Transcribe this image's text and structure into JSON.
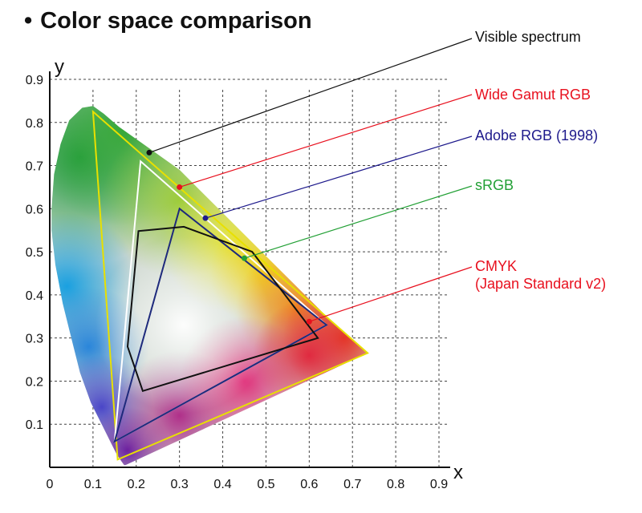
{
  "title": "Color space comparison",
  "chart_data": {
    "type": "line",
    "title": "Color space comparison",
    "xlabel": "x",
    "ylabel": "y",
    "xlim": [
      0,
      0.9
    ],
    "ylim": [
      0,
      0.9
    ],
    "grid": true,
    "x_ticks": [
      "0",
      "0.1",
      "0.2",
      "0.3",
      "0.4",
      "0.5",
      "0.6",
      "0.7",
      "0.8",
      "0.9"
    ],
    "y_ticks": [
      "0.1",
      "0.2",
      "0.3",
      "0.4",
      "0.5",
      "0.6",
      "0.7",
      "0.8",
      "0.9"
    ],
    "spectral_locus": [
      [
        0.175,
        0.005
      ],
      [
        0.172,
        0.005
      ],
      [
        0.165,
        0.015
      ],
      [
        0.155,
        0.03
      ],
      [
        0.14,
        0.06
      ],
      [
        0.12,
        0.1
      ],
      [
        0.095,
        0.15
      ],
      [
        0.07,
        0.22
      ],
      [
        0.05,
        0.3
      ],
      [
        0.03,
        0.38
      ],
      [
        0.013,
        0.47
      ],
      [
        0.004,
        0.55
      ],
      [
        0.004,
        0.6
      ],
      [
        0.01,
        0.68
      ],
      [
        0.025,
        0.75
      ],
      [
        0.045,
        0.805
      ],
      [
        0.075,
        0.834
      ],
      [
        0.1,
        0.838
      ],
      [
        0.125,
        0.82
      ],
      [
        0.16,
        0.79
      ],
      [
        0.23,
        0.74
      ],
      [
        0.3,
        0.69
      ],
      [
        0.37,
        0.62
      ],
      [
        0.44,
        0.55
      ],
      [
        0.51,
        0.48
      ],
      [
        0.58,
        0.41
      ],
      [
        0.65,
        0.34
      ],
      [
        0.7,
        0.295
      ],
      [
        0.735,
        0.265
      ]
    ],
    "series": [
      {
        "name": "Visible spectrum",
        "color": "#111111",
        "callout_point": [
          0.23,
          0.73
        ]
      },
      {
        "name": "Wide Gamut RGB",
        "color": "#e8e000",
        "label_color": "#e8101e",
        "points": [
          [
            0.1,
            0.825
          ],
          [
            0.735,
            0.265
          ],
          [
            0.157,
            0.018
          ]
        ],
        "callout_point": [
          0.3,
          0.65
        ]
      },
      {
        "name": "Adobe RGB (1998)",
        "color": "#ffffff",
        "label_color": "#1e1a8c",
        "points": [
          [
            0.21,
            0.71
          ],
          [
            0.64,
            0.33
          ],
          [
            0.15,
            0.06
          ]
        ],
        "callout_point": [
          0.36,
          0.578
        ]
      },
      {
        "name": "sRGB",
        "color": "#1e2a7c",
        "label_color": "#22a035",
        "points": [
          [
            0.3,
            0.6
          ],
          [
            0.64,
            0.33
          ],
          [
            0.15,
            0.06
          ]
        ],
        "callout_point": [
          0.45,
          0.485
        ]
      },
      {
        "name": "CMYK (Japan Standard v2)",
        "label_lines": [
          "CMYK",
          "(Japan Standard v2)"
        ],
        "color": "#111111",
        "label_color": "#e8101e",
        "points": [
          [
            0.205,
            0.548
          ],
          [
            0.31,
            0.558
          ],
          [
            0.468,
            0.5
          ],
          [
            0.62,
            0.3
          ],
          [
            0.215,
            0.177
          ],
          [
            0.18,
            0.28
          ]
        ],
        "callout_point": [
          0.6,
          0.338
        ]
      }
    ]
  }
}
